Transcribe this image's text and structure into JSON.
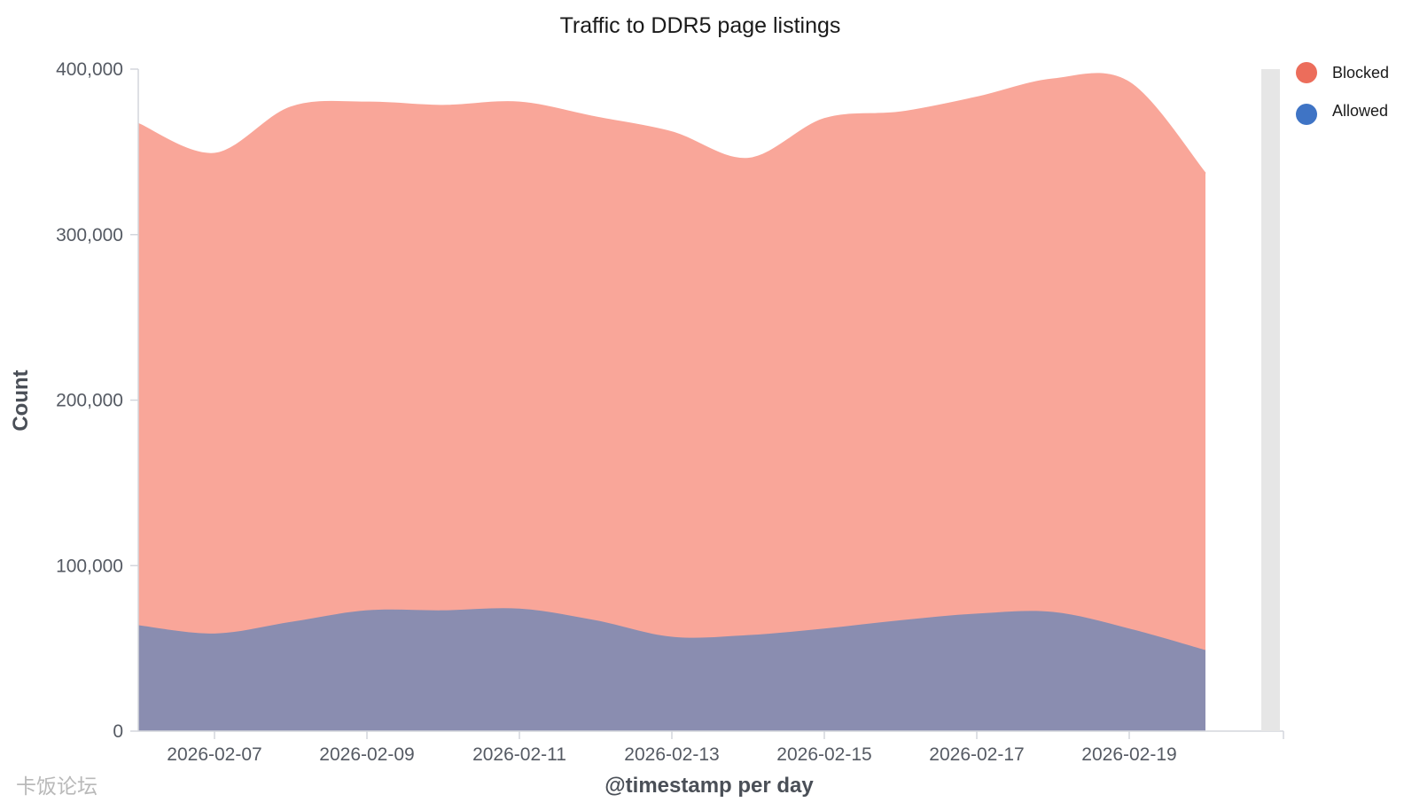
{
  "chart_data": {
    "type": "area",
    "stacked": true,
    "title": "Traffic to DDR5 page listings",
    "xlabel": "@timestamp per day",
    "ylabel": "Count",
    "ylim": [
      0,
      400000
    ],
    "yticks": [
      0,
      100000,
      200000,
      300000,
      400000
    ],
    "ytick_labels": [
      "0",
      "100,000",
      "200,000",
      "300,000",
      "400,000"
    ],
    "xtick_labels": [
      "2026-02-07",
      "2026-02-09",
      "2026-02-11",
      "2026-02-13",
      "2026-02-15",
      "2026-02-17",
      "2026-02-19"
    ],
    "x": [
      "2026-02-06",
      "2026-02-07",
      "2026-02-08",
      "2026-02-09",
      "2026-02-10",
      "2026-02-11",
      "2026-02-12",
      "2026-02-13",
      "2026-02-14",
      "2026-02-15",
      "2026-02-16",
      "2026-02-17",
      "2026-02-18",
      "2026-02-19",
      "2026-02-20"
    ],
    "series": [
      {
        "name": "Allowed",
        "color": "#8a8db0",
        "values": [
          64000,
          59000,
          66000,
          73000,
          73000,
          74000,
          67000,
          57000,
          58000,
          62000,
          67000,
          71000,
          72000,
          62000,
          49000
        ]
      },
      {
        "name": "Blocked",
        "color": "#f9a699",
        "values": [
          303000,
          290000,
          311000,
          307000,
          305000,
          306000,
          304000,
          305000,
          288000,
          308000,
          307000,
          312000,
          322000,
          330000,
          288000
        ]
      }
    ],
    "legend": {
      "position": "top-right",
      "items": [
        {
          "label": "Blocked",
          "color": "#ec6d5b"
        },
        {
          "label": "Allowed",
          "color": "#3f74c5"
        }
      ]
    },
    "grid": false
  },
  "watermark": "卡饭论坛"
}
